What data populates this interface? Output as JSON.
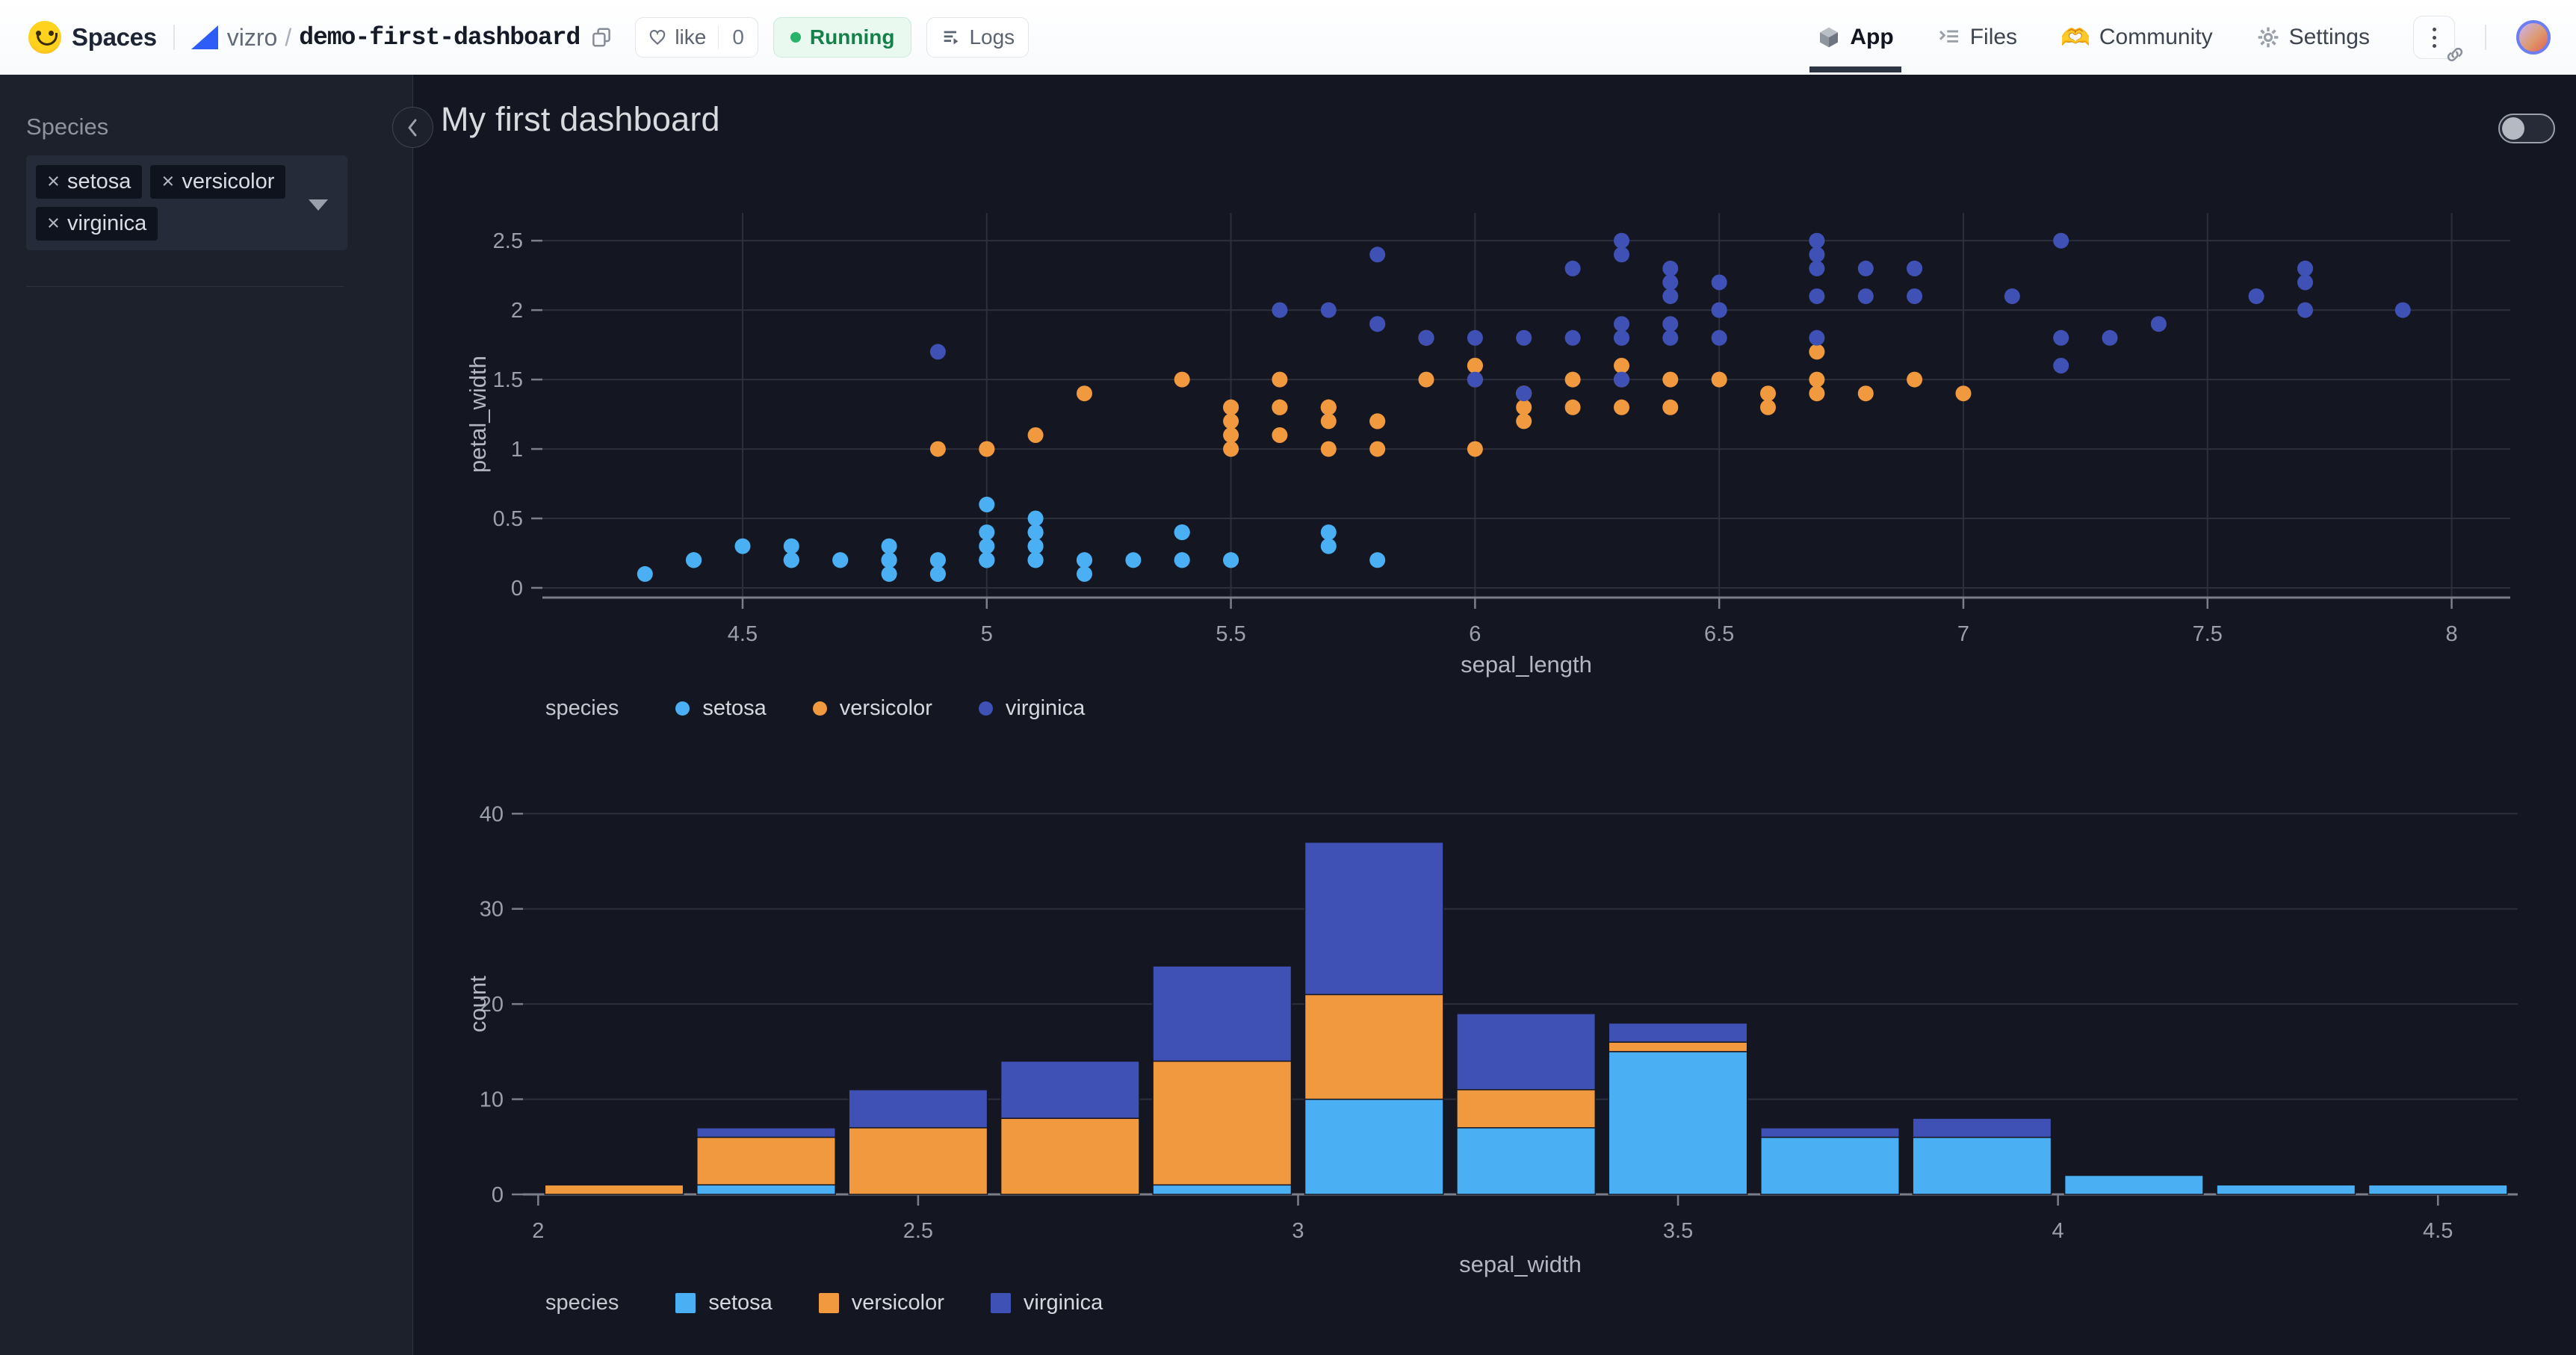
{
  "header": {
    "brand": "Spaces",
    "org": "vizro",
    "separator": "/",
    "repo": "demo-first-dashboard",
    "like_label": "like",
    "like_count": "0",
    "status": "Running",
    "logs_label": "Logs",
    "nav": [
      {
        "label": "App",
        "active": true
      },
      {
        "label": "Files",
        "active": false
      },
      {
        "label": "Community",
        "active": false
      },
      {
        "label": "Settings",
        "active": false
      }
    ],
    "community_glyph": "🫶"
  },
  "sidebar": {
    "filter_label": "Species",
    "chips": [
      "setosa",
      "versicolor",
      "virginica"
    ]
  },
  "ui": {
    "remove_icon": "×"
  },
  "dashboard": {
    "title": "My first dashboard"
  },
  "colors": {
    "setosa": "#4aaff3",
    "versicolor": "#f0993f",
    "virginica": "#3f51b5",
    "page_bg": "#141722",
    "sidebar_bg": "#1d212c",
    "grid": "#2c303c",
    "axis_line": "#7b7f89",
    "tick_label": "#9ba0a9",
    "axis_title": "#b3b7c0",
    "running_green": "#27b368"
  },
  "chart_data": [
    {
      "type": "scatter",
      "xlabel": "sepal_length",
      "ylabel": "petal_width",
      "legend_title": "species",
      "legend_position": "bottom",
      "grid": true,
      "x_ticks": [
        4.5,
        5,
        5.5,
        6,
        6.5,
        7,
        7.5,
        8
      ],
      "y_ticks": [
        0,
        0.5,
        1,
        1.5,
        2,
        2.5
      ],
      "x_range": [
        4.09,
        8.12
      ],
      "y_range": [
        -0.07,
        2.7
      ],
      "series": [
        {
          "name": "setosa",
          "color": "#4aaff3",
          "points": [
            [
              5.1,
              0.2
            ],
            [
              4.9,
              0.2
            ],
            [
              4.7,
              0.2
            ],
            [
              4.6,
              0.2
            ],
            [
              5.0,
              0.2
            ],
            [
              5.4,
              0.4
            ],
            [
              4.6,
              0.3
            ],
            [
              5.0,
              0.2
            ],
            [
              4.4,
              0.2
            ],
            [
              4.9,
              0.1
            ],
            [
              5.4,
              0.2
            ],
            [
              4.8,
              0.2
            ],
            [
              4.8,
              0.1
            ],
            [
              4.3,
              0.1
            ],
            [
              5.8,
              0.2
            ],
            [
              5.7,
              0.4
            ],
            [
              5.4,
              0.4
            ],
            [
              5.1,
              0.3
            ],
            [
              5.7,
              0.3
            ],
            [
              5.1,
              0.3
            ],
            [
              5.4,
              0.2
            ],
            [
              5.1,
              0.4
            ],
            [
              4.6,
              0.2
            ],
            [
              5.1,
              0.5
            ],
            [
              4.8,
              0.2
            ],
            [
              5.0,
              0.2
            ],
            [
              5.0,
              0.4
            ],
            [
              5.2,
              0.2
            ],
            [
              5.2,
              0.2
            ],
            [
              4.7,
              0.2
            ],
            [
              4.8,
              0.2
            ],
            [
              5.4,
              0.4
            ],
            [
              5.2,
              0.1
            ],
            [
              5.5,
              0.2
            ],
            [
              4.9,
              0.2
            ],
            [
              5.0,
              0.2
            ],
            [
              5.5,
              0.2
            ],
            [
              4.9,
              0.1
            ],
            [
              4.4,
              0.2
            ],
            [
              5.1,
              0.2
            ],
            [
              5.0,
              0.3
            ],
            [
              4.5,
              0.3
            ],
            [
              4.4,
              0.2
            ],
            [
              5.0,
              0.6
            ],
            [
              5.1,
              0.4
            ],
            [
              4.8,
              0.3
            ],
            [
              5.1,
              0.2
            ],
            [
              4.6,
              0.2
            ],
            [
              5.3,
              0.2
            ],
            [
              5.0,
              0.2
            ]
          ]
        },
        {
          "name": "versicolor",
          "color": "#f0993f",
          "points": [
            [
              7.0,
              1.4
            ],
            [
              6.4,
              1.5
            ],
            [
              6.9,
              1.5
            ],
            [
              5.5,
              1.3
            ],
            [
              6.5,
              1.5
            ],
            [
              5.7,
              1.3
            ],
            [
              6.3,
              1.6
            ],
            [
              4.9,
              1.0
            ],
            [
              6.6,
              1.3
            ],
            [
              5.2,
              1.4
            ],
            [
              5.0,
              1.0
            ],
            [
              5.9,
              1.5
            ],
            [
              6.0,
              1.0
            ],
            [
              6.1,
              1.4
            ],
            [
              5.6,
              1.3
            ],
            [
              6.7,
              1.4
            ],
            [
              5.6,
              1.5
            ],
            [
              5.8,
              1.0
            ],
            [
              6.2,
              1.5
            ],
            [
              5.6,
              1.1
            ],
            [
              5.9,
              1.8
            ],
            [
              6.1,
              1.3
            ],
            [
              6.3,
              1.5
            ],
            [
              6.1,
              1.2
            ],
            [
              6.4,
              1.3
            ],
            [
              6.6,
              1.4
            ],
            [
              6.8,
              1.4
            ],
            [
              6.7,
              1.7
            ],
            [
              6.0,
              1.5
            ],
            [
              5.7,
              1.0
            ],
            [
              5.5,
              1.1
            ],
            [
              5.5,
              1.0
            ],
            [
              5.8,
              1.2
            ],
            [
              6.0,
              1.6
            ],
            [
              5.4,
              1.5
            ],
            [
              6.0,
              1.6
            ],
            [
              6.7,
              1.5
            ],
            [
              6.3,
              1.3
            ],
            [
              5.6,
              1.3
            ],
            [
              5.5,
              1.3
            ],
            [
              5.5,
              1.2
            ],
            [
              6.1,
              1.4
            ],
            [
              5.8,
              1.2
            ],
            [
              5.0,
              1.0
            ],
            [
              5.6,
              1.3
            ],
            [
              5.7,
              1.2
            ],
            [
              5.7,
              1.3
            ],
            [
              6.2,
              1.3
            ],
            [
              5.1,
              1.1
            ],
            [
              5.7,
              1.3
            ]
          ]
        },
        {
          "name": "virginica",
          "color": "#3f51b5",
          "points": [
            [
              6.3,
              2.5
            ],
            [
              5.8,
              1.9
            ],
            [
              7.1,
              2.1
            ],
            [
              6.3,
              1.8
            ],
            [
              6.5,
              2.2
            ],
            [
              7.6,
              2.1
            ],
            [
              4.9,
              1.7
            ],
            [
              7.3,
              1.8
            ],
            [
              6.7,
              1.8
            ],
            [
              7.2,
              2.5
            ],
            [
              6.5,
              2.0
            ],
            [
              6.4,
              1.9
            ],
            [
              6.8,
              2.1
            ],
            [
              5.7,
              2.0
            ],
            [
              5.8,
              2.4
            ],
            [
              6.4,
              2.3
            ],
            [
              6.5,
              1.8
            ],
            [
              7.7,
              2.2
            ],
            [
              7.7,
              2.3
            ],
            [
              6.0,
              1.5
            ],
            [
              6.9,
              2.3
            ],
            [
              5.6,
              2.0
            ],
            [
              7.7,
              2.0
            ],
            [
              6.3,
              1.8
            ],
            [
              6.7,
              2.1
            ],
            [
              7.2,
              1.8
            ],
            [
              6.2,
              1.8
            ],
            [
              6.1,
              1.8
            ],
            [
              6.4,
              2.1
            ],
            [
              7.2,
              1.6
            ],
            [
              7.4,
              1.9
            ],
            [
              7.9,
              2.0
            ],
            [
              6.4,
              2.2
            ],
            [
              6.3,
              1.5
            ],
            [
              6.1,
              1.4
            ],
            [
              7.7,
              2.3
            ],
            [
              6.3,
              2.4
            ],
            [
              6.4,
              1.8
            ],
            [
              6.0,
              1.8
            ],
            [
              6.9,
              2.1
            ],
            [
              6.7,
              2.4
            ],
            [
              6.9,
              2.3
            ],
            [
              5.8,
              1.9
            ],
            [
              6.8,
              2.3
            ],
            [
              6.7,
              2.5
            ],
            [
              6.7,
              2.3
            ],
            [
              6.3,
              1.9
            ],
            [
              6.5,
              2.0
            ],
            [
              6.2,
              2.3
            ],
            [
              5.9,
              1.8
            ]
          ]
        }
      ]
    },
    {
      "type": "bar",
      "stacked": true,
      "xlabel": "sepal_width",
      "ylabel": "count",
      "legend_title": "species",
      "legend_position": "bottom",
      "bin_start": 2.0,
      "bin_width": 0.2,
      "x_ticks": [
        2,
        2.5,
        3,
        3.5,
        4,
        4.5
      ],
      "y_ticks": [
        0,
        10,
        20,
        30,
        40
      ],
      "x_range": [
        1.98,
        4.605
      ],
      "y_range": [
        0,
        42.3
      ],
      "series": [
        {
          "name": "setosa",
          "color": "#4aaff3",
          "values": [
            0,
            1,
            0,
            0,
            1,
            10,
            7,
            15,
            6,
            6,
            2,
            1,
            1
          ]
        },
        {
          "name": "versicolor",
          "color": "#f0993f",
          "values": [
            1,
            5,
            7,
            8,
            13,
            11,
            4,
            1,
            0,
            0,
            0,
            0,
            0
          ]
        },
        {
          "name": "virginica",
          "color": "#3f51b5",
          "values": [
            0,
            1,
            4,
            6,
            10,
            16,
            8,
            2,
            1,
            2,
            0,
            0,
            0
          ]
        }
      ]
    }
  ]
}
